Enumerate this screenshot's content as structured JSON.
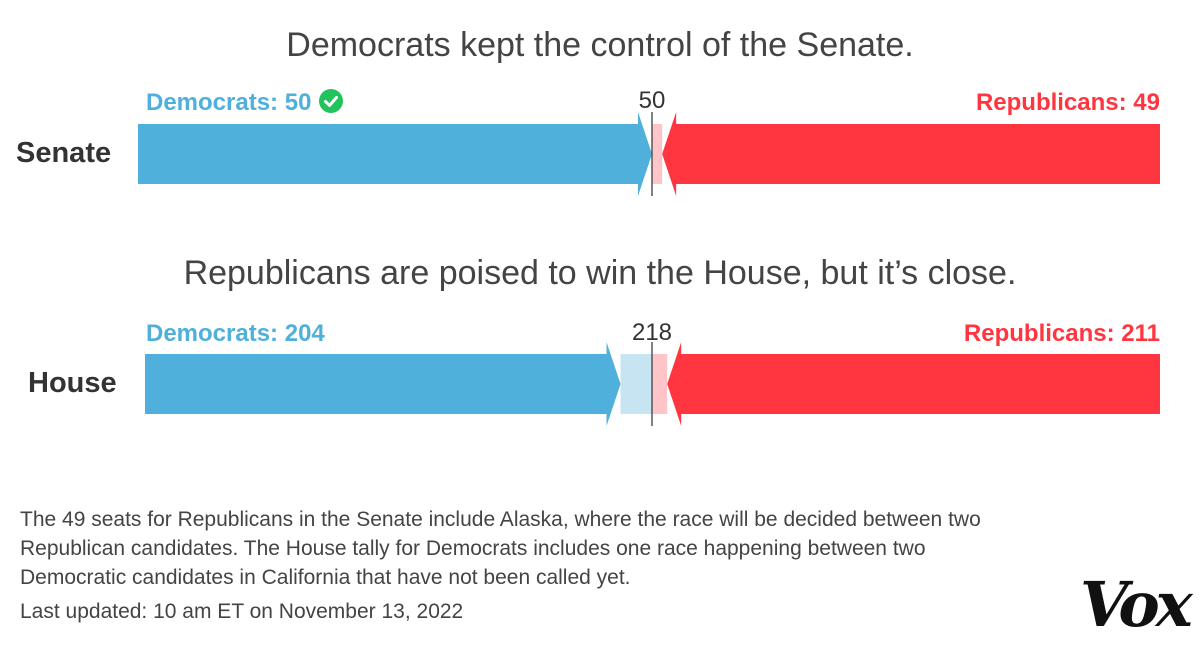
{
  "chart_data": [
    {
      "type": "bar",
      "title": "Democrats kept the control of the Senate.",
      "chamber": "Senate",
      "majority_threshold": 50,
      "majority_label": "50",
      "total_seats": 100,
      "series": [
        {
          "name": "Democrats",
          "value": 50,
          "label": "Democrats: 50",
          "color": "#4fb0dc",
          "winner": true
        },
        {
          "name": "Republicans",
          "value": 49,
          "label": "Republicans: 49",
          "color": "#ff3640"
        }
      ]
    },
    {
      "type": "bar",
      "title": "Republicans are poised to win the House, but it’s close.",
      "chamber": "House",
      "majority_threshold": 218,
      "majority_label": "218",
      "total_seats": 435,
      "series": [
        {
          "name": "Democrats",
          "value": 204,
          "label": "Democrats: 204",
          "color": "#4fb0dc"
        },
        {
          "name": "Republicans",
          "value": 211,
          "label": "Republicans: 211",
          "color": "#ff3640"
        }
      ]
    }
  ],
  "colors": {
    "dem": "#4fb0dc",
    "dem_light": "#c7e4f2",
    "rep": "#ff3640",
    "rep_light": "#ffc4c7",
    "check": "#22c25c"
  },
  "icons": {
    "winner": "check-circle-icon"
  },
  "footnote": "The 49 seats for Republicans in the Senate include Alaska, where the race will be decided between two Republican candidates. The House tally for Democrats includes one race happening between two Democratic candidates in California that have not been called yet.",
  "updated": "Last updated: 10 am ET on November 13, 2022",
  "logo": "Vox"
}
